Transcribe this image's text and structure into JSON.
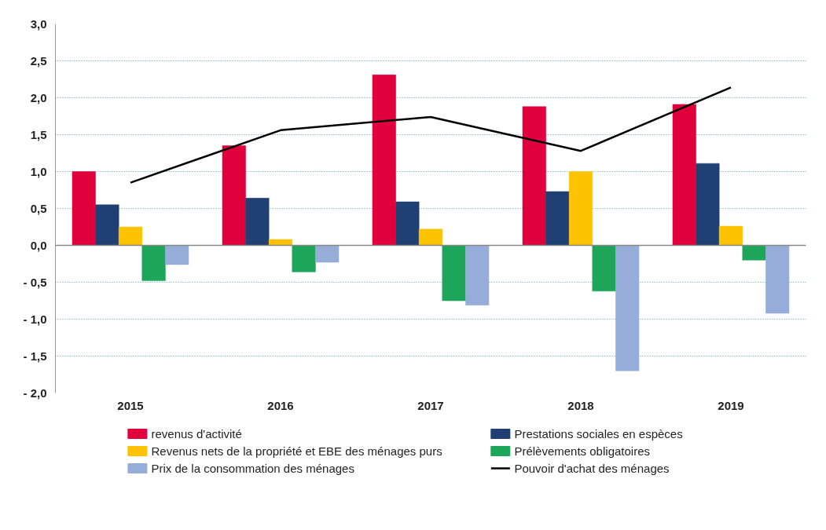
{
  "chart_data": {
    "type": "bar",
    "categories": [
      "2015",
      "2016",
      "2017",
      "2018",
      "2019"
    ],
    "series": [
      {
        "name": "revenus d'activité",
        "color": "#e0003c",
        "values": [
          1.0,
          1.35,
          2.31,
          1.88,
          1.91
        ]
      },
      {
        "name": "Prestations sociales en espèces",
        "color": "#203f72",
        "values": [
          0.55,
          0.64,
          0.59,
          0.73,
          1.11
        ]
      },
      {
        "name": "Revenus nets de la propriété et EBE des ménages purs",
        "color": "#fdc300",
        "values": [
          0.25,
          0.08,
          0.22,
          1.0,
          0.26
        ]
      },
      {
        "name": "Prélèvements obligatoires",
        "color": "#1da55a",
        "values": [
          -0.48,
          -0.36,
          -0.75,
          -0.62,
          -0.2
        ]
      },
      {
        "name": "Prix de la consommation des ménages",
        "color": "#95add8",
        "values": [
          -0.26,
          -0.23,
          -0.81,
          -1.7,
          -0.92
        ]
      },
      {
        "name": "Pouvoir d'achat des ménages",
        "color": "#000000",
        "type": "line",
        "values": [
          0.85,
          1.56,
          1.74,
          1.28,
          2.14
        ]
      }
    ],
    "ylim": [
      -2.0,
      3.0
    ],
    "yticks": [
      {
        "value": -2.0,
        "label": "- 2,0"
      },
      {
        "value": -1.5,
        "label": "- 1,5"
      },
      {
        "value": -1.0,
        "label": "- 1,0"
      },
      {
        "value": -0.5,
        "label": "- 0,5"
      },
      {
        "value": 0.0,
        "label": "0,0"
      },
      {
        "value": 0.5,
        "label": "0,5"
      },
      {
        "value": 1.0,
        "label": "1,0"
      },
      {
        "value": 1.5,
        "label": "1,5"
      },
      {
        "value": 2.0,
        "label": "2,0"
      },
      {
        "value": 2.5,
        "label": "2,5"
      },
      {
        "value": 3.0,
        "label": "3,0"
      }
    ],
    "grid": "y",
    "legend": "bottom",
    "marker": "none",
    "line_style": "solid"
  }
}
